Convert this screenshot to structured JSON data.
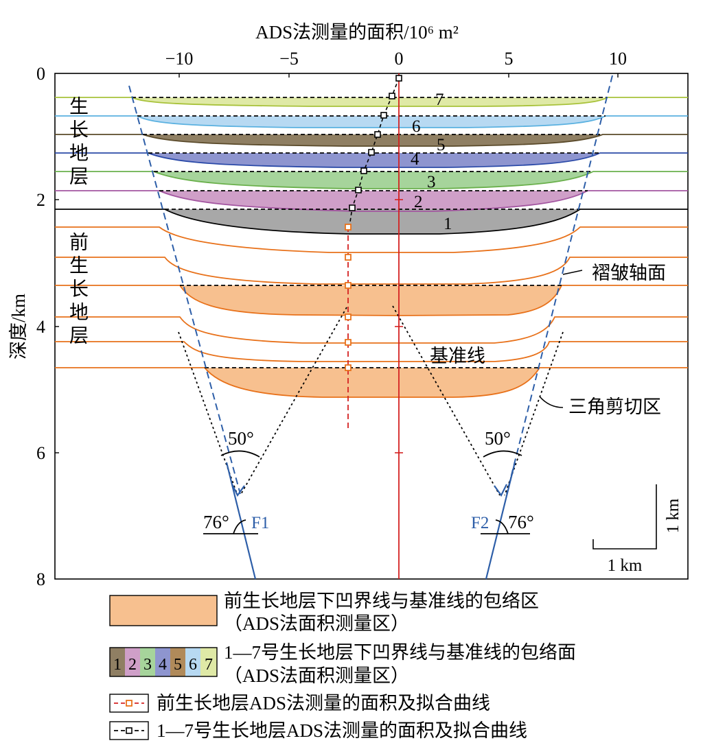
{
  "top_axis": {
    "label": "ADS法测量的面积/10⁶ m²",
    "ticks": [
      "−10",
      "−5",
      "0",
      "5",
      "10"
    ],
    "tick_values": [
      -10,
      -5,
      0,
      5,
      10
    ]
  },
  "left_axis": {
    "label": "深度/km",
    "ticks": [
      "0",
      "2",
      "4",
      "6",
      "8"
    ],
    "tick_values": [
      0,
      2,
      4,
      6,
      8
    ]
  },
  "side_labels": {
    "growth_strata": "生长地层",
    "pre_growth_strata": "前生长地层"
  },
  "layer_numbers": [
    "1",
    "2",
    "3",
    "4",
    "5",
    "6",
    "7"
  ],
  "annotations": {
    "fold_axial_surface": "褶皱轴面",
    "datum_line": "基准线",
    "triangle_shear_zone": "三角剪切区",
    "angle_left": "50°",
    "angle_right": "50°",
    "dip_left": "76°",
    "dip_right": "76°",
    "fault_left": "F1",
    "fault_right": "F2",
    "scale_vertical": "1 km",
    "scale_horizontal": "1 km"
  },
  "legend": {
    "orange_area_line1": "前生长地层下凹界线与基准线的包络区",
    "orange_area_line2": "（ADS法面积测量区）",
    "swatch_numbers": [
      "1",
      "2",
      "3",
      "4",
      "5",
      "6",
      "7"
    ],
    "growth_area_line1": "1—7号生长地层下凹界线与基准线的包络面",
    "growth_area_line2": "（ADS法面积测量区）",
    "red_series": "前生长地层ADS法测量的面积及拟合曲线",
    "black_series": "1—7号生长地层ADS法测量的面积及拟合曲线"
  },
  "colors": {
    "pre_growth_fill": "#f7c08f",
    "pre_growth_line": "#e8711a",
    "fault": "#2d5ea8",
    "red_axis": "#d42020",
    "layer_fills": [
      "#a8a8a8",
      "#cf9fc8",
      "#a6d49b",
      "#8e95cf",
      "#8f7f63",
      "#b7d9f2",
      "#dfe9a6"
    ],
    "layer_lines": [
      "#000000",
      "#a355a0",
      "#6ab04c",
      "#2b4aa8",
      "#5a4a2a",
      "#5ab1e0",
      "#a8c23a"
    ],
    "swatch_fills": [
      "#8f7f63",
      "#cf9fc8",
      "#a6d49b",
      "#8e95cf",
      "#b08a5a",
      "#b7d9f2",
      "#dfe9a6"
    ]
  }
}
